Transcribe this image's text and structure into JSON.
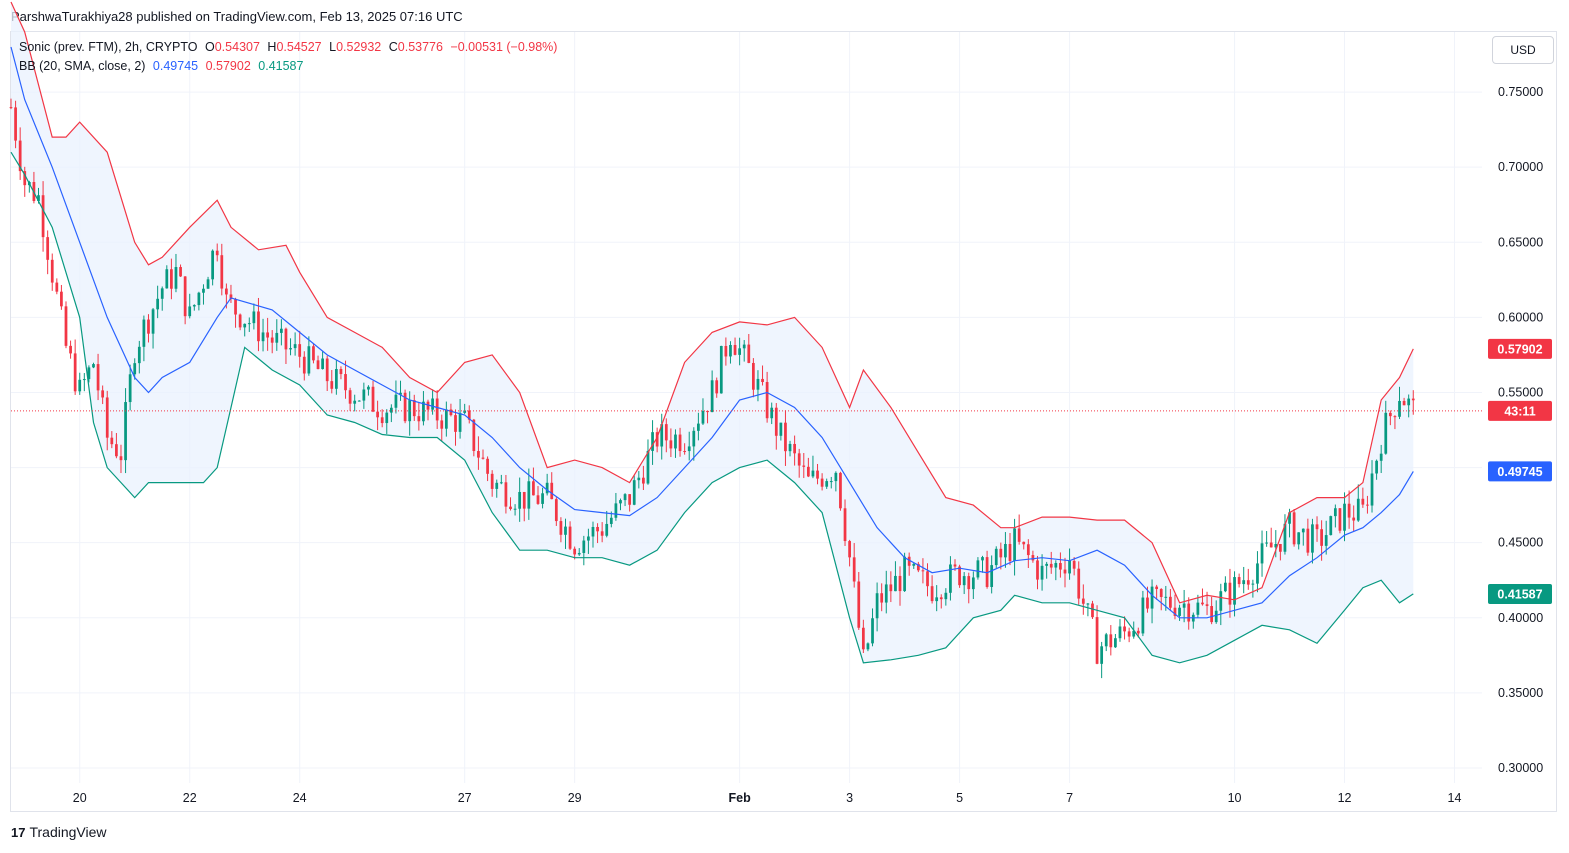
{
  "publisher": "ParshwaTurakhiya28 published on TradingView.com, Feb 13, 2025 07:16 UTC",
  "currency_button": "USD",
  "footer": {
    "logo_glyph": "17",
    "brand": "TradingView"
  },
  "legend": {
    "symbol": "Sonic (prev. FTM), 2h, CRYPTO",
    "o_label": "O",
    "o_value": "0.54307",
    "h_label": "H",
    "h_value": "0.54527",
    "l_label": "L",
    "l_value": "0.52932",
    "c_label": "C",
    "c_value": "0.53776",
    "change": "−0.00531 (−0.98%)",
    "indicator": "BB (20, SMA, close, 2)",
    "bb_basis": "0.49745",
    "bb_upper": "0.57902",
    "bb_lower": "0.41587"
  },
  "price_tags": {
    "upper": {
      "text": "0.57902",
      "value": 0.57902,
      "color": "#f23645"
    },
    "countdown": {
      "text": "43:11",
      "value": 0.53776,
      "color": "#f23645"
    },
    "basis": {
      "text": "0.49745",
      "value": 0.49745,
      "color": "#2962ff"
    },
    "lower": {
      "text": "0.41587",
      "value": 0.41587,
      "color": "#089981"
    }
  },
  "colors": {
    "up": "#089981",
    "down": "#f23645",
    "upper_band": "#f23645",
    "basis": "#2962ff",
    "lower_band": "#089981",
    "band_fill": "#eaf2fd"
  },
  "chart_data": {
    "type": "candlestick",
    "ylim": [
      0.29,
      0.79
    ],
    "y_ticks": [
      "0.30000",
      "0.35000",
      "0.40000",
      "0.45000",
      "0.50000",
      "0.55000",
      "0.60000",
      "0.65000",
      "0.70000",
      "0.75000"
    ],
    "x_range_days": [
      "2025-01-18T18:00",
      "2025-02-14T12:00"
    ],
    "x_ticks": [
      {
        "label": "20",
        "date": "2025-01-20"
      },
      {
        "label": "22",
        "date": "2025-01-22"
      },
      {
        "label": "24",
        "date": "2025-01-24"
      },
      {
        "label": "27",
        "date": "2025-01-27"
      },
      {
        "label": "29",
        "date": "2025-01-29"
      },
      {
        "label": "Feb",
        "date": "2025-02-01",
        "bold": true
      },
      {
        "label": "3",
        "date": "2025-02-03"
      },
      {
        "label": "5",
        "date": "2025-02-05"
      },
      {
        "label": "7",
        "date": "2025-02-07"
      },
      {
        "label": "10",
        "date": "2025-02-10"
      },
      {
        "label": "12",
        "date": "2025-02-12"
      },
      {
        "label": "14",
        "date": "2025-02-14"
      }
    ],
    "last_price": 0.53776,
    "close_series": {
      "dates": [
        "2025-01-18T18:00",
        "2025-01-19T00:00",
        "2025-01-19T06:00",
        "2025-01-19T12:00",
        "2025-01-19T18:00",
        "2025-01-20T00:00",
        "2025-01-20T06:00",
        "2025-01-20T12:00",
        "2025-01-20T18:00",
        "2025-01-21T00:00",
        "2025-01-21T06:00",
        "2025-01-21T12:00",
        "2025-01-21T18:00",
        "2025-01-22T00:00",
        "2025-01-22T12:00",
        "2025-01-22T16:00",
        "2025-01-23T00:00",
        "2025-01-23T12:00",
        "2025-01-24T00:00",
        "2025-01-24T12:00",
        "2025-01-25T00:00",
        "2025-01-25T12:00",
        "2025-01-26T00:00",
        "2025-01-26T12:00",
        "2025-01-27T00:00",
        "2025-01-27T12:00",
        "2025-01-28T00:00",
        "2025-01-28T12:00",
        "2025-01-29T00:00",
        "2025-01-29T12:00",
        "2025-01-30T00:00",
        "2025-01-30T12:00",
        "2025-01-31T00:00",
        "2025-01-31T12:00",
        "2025-01-31T20:00",
        "2025-02-01T06:00",
        "2025-02-01T18:00",
        "2025-02-02T06:00",
        "2025-02-02T18:00",
        "2025-02-03T00:00",
        "2025-02-03T06:00",
        "2025-02-03T12:00",
        "2025-02-04T00:00",
        "2025-02-04T12:00",
        "2025-02-05T00:00",
        "2025-02-05T12:00",
        "2025-02-06T00:00",
        "2025-02-06T12:00",
        "2025-02-07T00:00",
        "2025-02-07T12:00",
        "2025-02-08T00:00",
        "2025-02-08T12:00",
        "2025-02-09T00:00",
        "2025-02-09T12:00",
        "2025-02-10T00:00",
        "2025-02-10T12:00",
        "2025-02-11T00:00",
        "2025-02-11T12:00",
        "2025-02-12T00:00",
        "2025-02-12T08:00",
        "2025-02-12T16:00",
        "2025-02-13T00:00",
        "2025-02-13T06:00"
      ],
      "values": [
        0.74,
        0.69,
        0.68,
        0.63,
        0.58,
        0.55,
        0.57,
        0.52,
        0.51,
        0.58,
        0.6,
        0.62,
        0.63,
        0.6,
        0.65,
        0.61,
        0.6,
        0.585,
        0.575,
        0.56,
        0.55,
        0.54,
        0.54,
        0.535,
        0.53,
        0.49,
        0.48,
        0.48,
        0.45,
        0.46,
        0.48,
        0.52,
        0.52,
        0.55,
        0.59,
        0.56,
        0.52,
        0.49,
        0.5,
        0.44,
        0.37,
        0.41,
        0.43,
        0.42,
        0.43,
        0.43,
        0.45,
        0.43,
        0.44,
        0.38,
        0.39,
        0.41,
        0.41,
        0.405,
        0.42,
        0.44,
        0.46,
        0.45,
        0.47,
        0.47,
        0.52,
        0.55,
        0.538
      ]
    },
    "series": [
      {
        "name": "BB upper (20)",
        "color": "#f23645",
        "points": [
          [
            "2025-01-18T18:00",
            0.81
          ],
          [
            "2025-01-19T00:00",
            0.79
          ],
          [
            "2025-01-19T12:00",
            0.72
          ],
          [
            "2025-01-19T18:00",
            0.72
          ],
          [
            "2025-01-20T00:00",
            0.73
          ],
          [
            "2025-01-20T12:00",
            0.71
          ],
          [
            "2025-01-21T00:00",
            0.65
          ],
          [
            "2025-01-21T06:00",
            0.635
          ],
          [
            "2025-01-21T12:00",
            0.64
          ],
          [
            "2025-01-22T00:00",
            0.66
          ],
          [
            "2025-01-22T12:00",
            0.678
          ],
          [
            "2025-01-22T18:00",
            0.66
          ],
          [
            "2025-01-23T06:00",
            0.645
          ],
          [
            "2025-01-23T18:00",
            0.648
          ],
          [
            "2025-01-24T00:00",
            0.63
          ],
          [
            "2025-01-24T12:00",
            0.6
          ],
          [
            "2025-01-25T00:00",
            0.59
          ],
          [
            "2025-01-25T12:00",
            0.58
          ],
          [
            "2025-01-26T00:00",
            0.56
          ],
          [
            "2025-01-26T12:00",
            0.55
          ],
          [
            "2025-01-27T00:00",
            0.57
          ],
          [
            "2025-01-27T12:00",
            0.575
          ],
          [
            "2025-01-28T00:00",
            0.55
          ],
          [
            "2025-01-28T12:00",
            0.5
          ],
          [
            "2025-01-29T00:00",
            0.505
          ],
          [
            "2025-01-29T12:00",
            0.5
          ],
          [
            "2025-01-30T00:00",
            0.49
          ],
          [
            "2025-01-30T12:00",
            0.52
          ],
          [
            "2025-01-31T00:00",
            0.57
          ],
          [
            "2025-01-31T12:00",
            0.59
          ],
          [
            "2025-02-01T00:00",
            0.597
          ],
          [
            "2025-02-01T12:00",
            0.595
          ],
          [
            "2025-02-02T00:00",
            0.6
          ],
          [
            "2025-02-02T12:00",
            0.58
          ],
          [
            "2025-02-03T00:00",
            0.54
          ],
          [
            "2025-02-03T06:00",
            0.565
          ],
          [
            "2025-02-03T18:00",
            0.54
          ],
          [
            "2025-02-04T06:00",
            0.51
          ],
          [
            "2025-02-04T18:00",
            0.48
          ],
          [
            "2025-02-05T06:00",
            0.475
          ],
          [
            "2025-02-05T18:00",
            0.46
          ],
          [
            "2025-02-06T00:00",
            0.46
          ],
          [
            "2025-02-06T12:00",
            0.467
          ],
          [
            "2025-02-07T00:00",
            0.467
          ],
          [
            "2025-02-07T12:00",
            0.465
          ],
          [
            "2025-02-08T00:00",
            0.465
          ],
          [
            "2025-02-08T12:00",
            0.45
          ],
          [
            "2025-02-09T00:00",
            0.41
          ],
          [
            "2025-02-09T12:00",
            0.415
          ],
          [
            "2025-02-10T00:00",
            0.412
          ],
          [
            "2025-02-10T12:00",
            0.42
          ],
          [
            "2025-02-11T00:00",
            0.47
          ],
          [
            "2025-02-11T12:00",
            0.48
          ],
          [
            "2025-02-12T00:00",
            0.48
          ],
          [
            "2025-02-12T08:00",
            0.49
          ],
          [
            "2025-02-12T16:00",
            0.545
          ],
          [
            "2025-02-13T00:00",
            0.56
          ],
          [
            "2025-02-13T06:00",
            0.57902
          ]
        ]
      },
      {
        "name": "BB basis (20)",
        "color": "#2962ff",
        "points": [
          [
            "2025-01-18T18:00",
            0.78
          ],
          [
            "2025-01-19T00:00",
            0.745
          ],
          [
            "2025-01-19T12:00",
            0.7
          ],
          [
            "2025-01-20T00:00",
            0.65
          ],
          [
            "2025-01-20T12:00",
            0.6
          ],
          [
            "2025-01-21T00:00",
            0.56
          ],
          [
            "2025-01-21T06:00",
            0.55
          ],
          [
            "2025-01-21T12:00",
            0.56
          ],
          [
            "2025-01-22T00:00",
            0.57
          ],
          [
            "2025-01-22T12:00",
            0.6
          ],
          [
            "2025-01-22T18:00",
            0.613
          ],
          [
            "2025-01-23T12:00",
            0.605
          ],
          [
            "2025-01-24T00:00",
            0.59
          ],
          [
            "2025-01-24T12:00",
            0.575
          ],
          [
            "2025-01-25T00:00",
            0.565
          ],
          [
            "2025-01-25T12:00",
            0.555
          ],
          [
            "2025-01-26T00:00",
            0.545
          ],
          [
            "2025-01-26T12:00",
            0.54
          ],
          [
            "2025-01-27T00:00",
            0.535
          ],
          [
            "2025-01-27T12:00",
            0.52
          ],
          [
            "2025-01-28T00:00",
            0.5
          ],
          [
            "2025-01-28T12:00",
            0.485
          ],
          [
            "2025-01-29T00:00",
            0.472
          ],
          [
            "2025-01-29T12:00",
            0.47
          ],
          [
            "2025-01-30T00:00",
            0.468
          ],
          [
            "2025-01-30T12:00",
            0.48
          ],
          [
            "2025-01-31T00:00",
            0.5
          ],
          [
            "2025-01-31T12:00",
            0.52
          ],
          [
            "2025-02-01T00:00",
            0.545
          ],
          [
            "2025-02-01T12:00",
            0.55
          ],
          [
            "2025-02-02T00:00",
            0.54
          ],
          [
            "2025-02-02T12:00",
            0.52
          ],
          [
            "2025-02-03T00:00",
            0.49
          ],
          [
            "2025-02-03T12:00",
            0.46
          ],
          [
            "2025-02-04T00:00",
            0.44
          ],
          [
            "2025-02-04T12:00",
            0.43
          ],
          [
            "2025-02-05T00:00",
            0.433
          ],
          [
            "2025-02-05T12:00",
            0.43
          ],
          [
            "2025-02-06T00:00",
            0.438
          ],
          [
            "2025-02-06T12:00",
            0.44
          ],
          [
            "2025-02-07T00:00",
            0.438
          ],
          [
            "2025-02-07T12:00",
            0.445
          ],
          [
            "2025-02-08T00:00",
            0.435
          ],
          [
            "2025-02-08T12:00",
            0.415
          ],
          [
            "2025-02-09T00:00",
            0.4
          ],
          [
            "2025-02-09T12:00",
            0.4
          ],
          [
            "2025-02-10T00:00",
            0.405
          ],
          [
            "2025-02-10T12:00",
            0.41
          ],
          [
            "2025-02-11T00:00",
            0.428
          ],
          [
            "2025-02-11T12:00",
            0.44
          ],
          [
            "2025-02-12T00:00",
            0.455
          ],
          [
            "2025-02-12T08:00",
            0.46
          ],
          [
            "2025-02-12T16:00",
            0.47
          ],
          [
            "2025-02-13T00:00",
            0.482
          ],
          [
            "2025-02-13T06:00",
            0.49745
          ]
        ]
      },
      {
        "name": "BB lower (20)",
        "color": "#089981",
        "points": [
          [
            "2025-01-18T18:00",
            0.71
          ],
          [
            "2025-01-19T00:00",
            0.695
          ],
          [
            "2025-01-19T12:00",
            0.66
          ],
          [
            "2025-01-20T00:00",
            0.6
          ],
          [
            "2025-01-20T06:00",
            0.53
          ],
          [
            "2025-01-20T12:00",
            0.5
          ],
          [
            "2025-01-20T18:00",
            0.49
          ],
          [
            "2025-01-21T00:00",
            0.48
          ],
          [
            "2025-01-21T06:00",
            0.49
          ],
          [
            "2025-01-21T18:00",
            0.49
          ],
          [
            "2025-01-22T06:00",
            0.49
          ],
          [
            "2025-01-22T12:00",
            0.5
          ],
          [
            "2025-01-22T18:00",
            0.54
          ],
          [
            "2025-01-23T00:00",
            0.58
          ],
          [
            "2025-01-23T12:00",
            0.565
          ],
          [
            "2025-01-24T00:00",
            0.555
          ],
          [
            "2025-01-24T12:00",
            0.535
          ],
          [
            "2025-01-25T00:00",
            0.53
          ],
          [
            "2025-01-25T12:00",
            0.522
          ],
          [
            "2025-01-26T00:00",
            0.52
          ],
          [
            "2025-01-26T12:00",
            0.52
          ],
          [
            "2025-01-27T00:00",
            0.505
          ],
          [
            "2025-01-27T12:00",
            0.47
          ],
          [
            "2025-01-28T00:00",
            0.445
          ],
          [
            "2025-01-28T12:00",
            0.445
          ],
          [
            "2025-01-29T00:00",
            0.44
          ],
          [
            "2025-01-29T12:00",
            0.44
          ],
          [
            "2025-01-30T00:00",
            0.435
          ],
          [
            "2025-01-30T12:00",
            0.445
          ],
          [
            "2025-01-31T00:00",
            0.47
          ],
          [
            "2025-01-31T12:00",
            0.49
          ],
          [
            "2025-02-01T00:00",
            0.5
          ],
          [
            "2025-02-01T12:00",
            0.505
          ],
          [
            "2025-02-02T00:00",
            0.49
          ],
          [
            "2025-02-02T12:00",
            0.47
          ],
          [
            "2025-02-03T00:00",
            0.4
          ],
          [
            "2025-02-03T06:00",
            0.37
          ],
          [
            "2025-02-03T18:00",
            0.372
          ],
          [
            "2025-02-04T06:00",
            0.375
          ],
          [
            "2025-02-04T18:00",
            0.38
          ],
          [
            "2025-02-05T06:00",
            0.4
          ],
          [
            "2025-02-05T18:00",
            0.405
          ],
          [
            "2025-02-06T00:00",
            0.415
          ],
          [
            "2025-02-06T12:00",
            0.41
          ],
          [
            "2025-02-07T00:00",
            0.41
          ],
          [
            "2025-02-07T12:00",
            0.405
          ],
          [
            "2025-02-08T00:00",
            0.4
          ],
          [
            "2025-02-08T12:00",
            0.375
          ],
          [
            "2025-02-09T00:00",
            0.37
          ],
          [
            "2025-02-09T12:00",
            0.375
          ],
          [
            "2025-02-10T00:00",
            0.385
          ],
          [
            "2025-02-10T12:00",
            0.395
          ],
          [
            "2025-02-11T00:00",
            0.392
          ],
          [
            "2025-02-11T12:00",
            0.383
          ],
          [
            "2025-02-12T00:00",
            0.405
          ],
          [
            "2025-02-12T08:00",
            0.42
          ],
          [
            "2025-02-12T16:00",
            0.425
          ],
          [
            "2025-02-13T00:00",
            0.41
          ],
          [
            "2025-02-13T06:00",
            0.41587
          ]
        ]
      }
    ]
  }
}
